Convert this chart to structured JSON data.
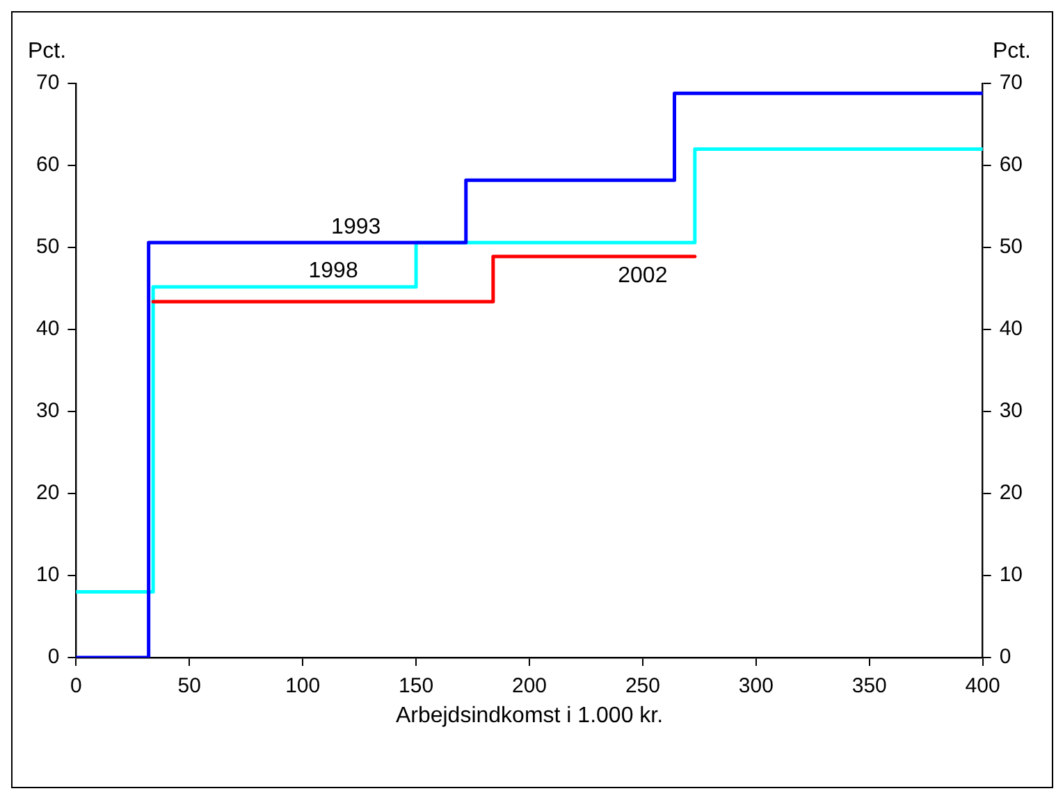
{
  "chart_data": {
    "type": "step",
    "xlabel": "Arbejdsindkomst i 1.000 kr.",
    "ylabel": "Pct.",
    "y2label": "Pct.",
    "xlim": [
      0,
      400
    ],
    "xticks": [
      0,
      50,
      100,
      150,
      200,
      250,
      300,
      350,
      400
    ],
    "ylim": [
      0,
      70
    ],
    "yticks": [
      0,
      10,
      20,
      30,
      40,
      50,
      60,
      70
    ],
    "y2lim": [
      0,
      70
    ],
    "y2ticks": [
      0,
      10,
      20,
      30,
      40,
      50,
      60,
      70
    ],
    "grid": false,
    "legend": false,
    "marker": "none",
    "line_style": "solid",
    "series": [
      {
        "name": "1993",
        "color": "#0000ff",
        "x": [
          0,
          32,
          172,
          264,
          400
        ],
        "values": [
          0,
          50.6,
          58.2,
          68.8,
          68.8
        ]
      },
      {
        "name": "2002",
        "color": "#ff0000",
        "x": [
          34,
          184,
          273
        ],
        "values": [
          43.4,
          48.9,
          48.9
        ]
      },
      {
        "name": "1998",
        "color": "#00ffff",
        "x": [
          0,
          34,
          150,
          273,
          400
        ],
        "values": [
          8,
          45.2,
          50.6,
          62,
          62
        ]
      }
    ]
  }
}
